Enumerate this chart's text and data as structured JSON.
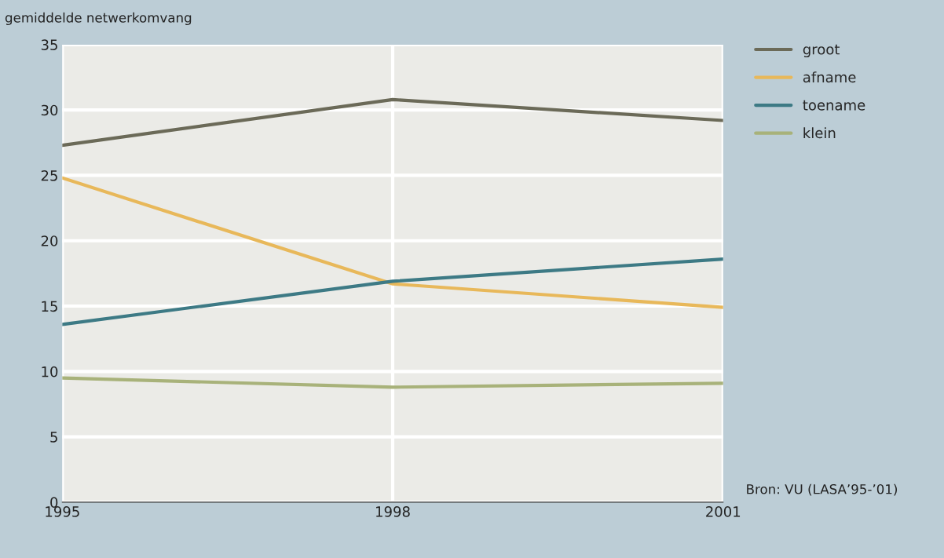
{
  "chart_data": {
    "type": "line",
    "ylabel": "gemiddelde netwerkomvang",
    "x": [
      1995,
      1998,
      2001
    ],
    "series": [
      {
        "name": "groot",
        "color": "#6b6a58",
        "values": [
          27.3,
          30.8,
          29.2
        ]
      },
      {
        "name": "afname",
        "color": "#e8b85a",
        "values": [
          24.8,
          16.7,
          14.9
        ]
      },
      {
        "name": "toename",
        "color": "#3d7a85",
        "values": [
          13.6,
          16.9,
          18.6
        ]
      },
      {
        "name": "klein",
        "color": "#a8b27a",
        "values": [
          9.5,
          8.8,
          9.1
        ]
      }
    ],
    "xlim": [
      1995,
      2001
    ],
    "xticks": [
      1995,
      1998,
      2001
    ],
    "ylim": [
      0,
      35
    ],
    "yticks": [
      0,
      5,
      10,
      15,
      20,
      25,
      30,
      35
    ],
    "grid": true,
    "legend": "right",
    "marker": "none",
    "line_style": "solid",
    "annotations": [
      "Bron: VU (LASA’95-’01)"
    ]
  }
}
